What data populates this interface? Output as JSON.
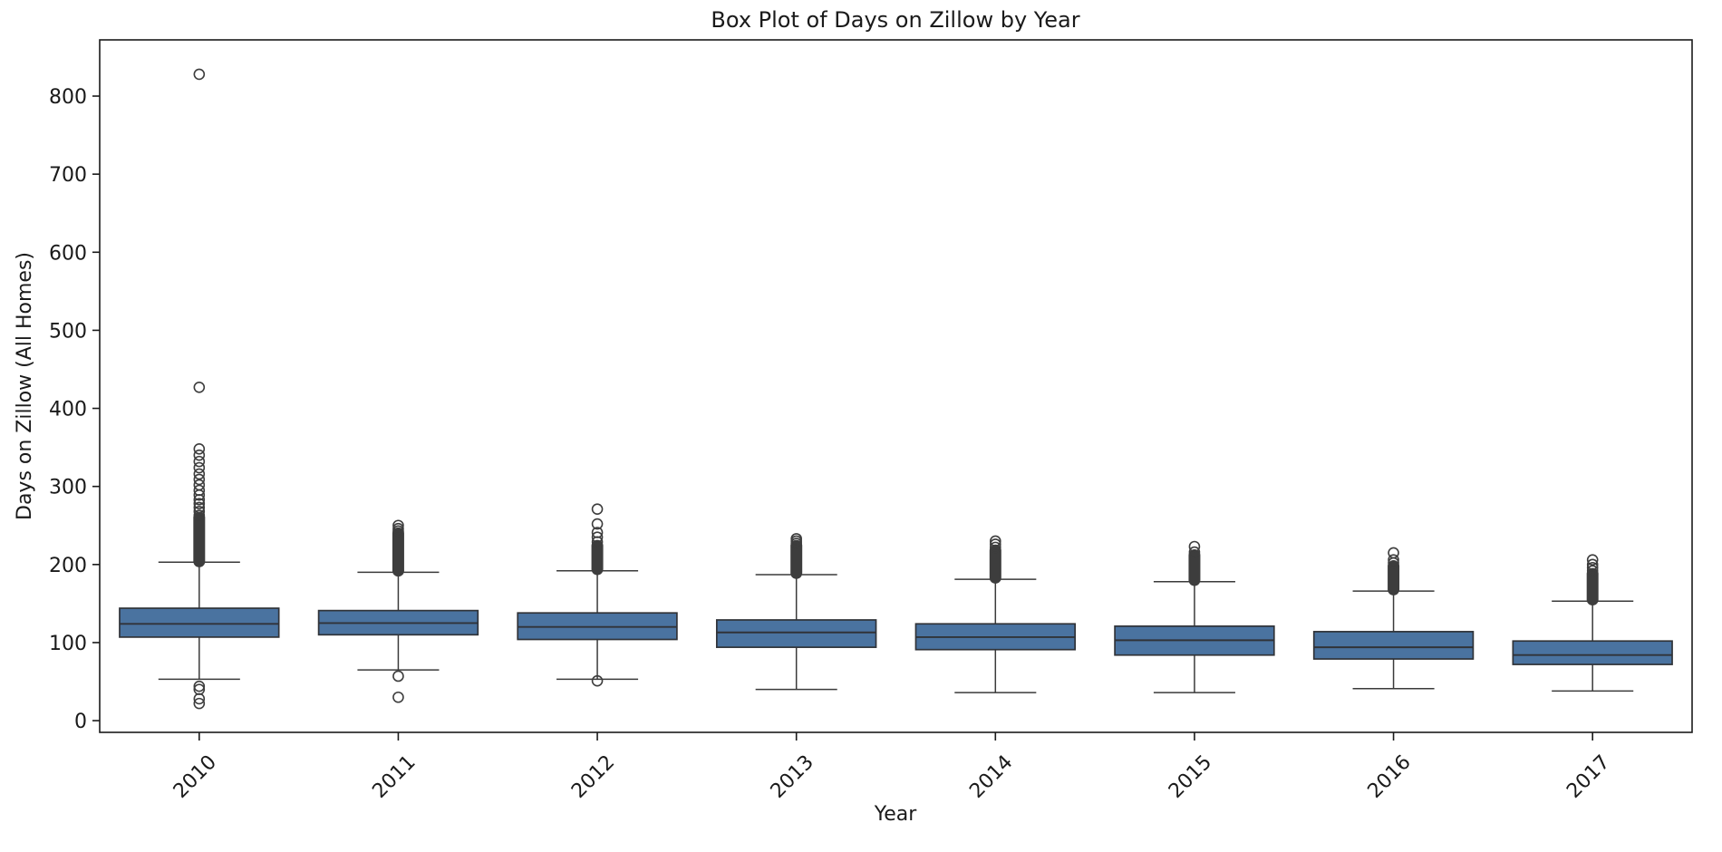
{
  "title": "Box Plot of Days on Zillow by Year",
  "chart_data": {
    "type": "box",
    "title": "Box Plot of Days on Zillow by Year",
    "xlabel": "Year",
    "ylabel": "Days on Zillow (All Homes)",
    "categories": [
      "2010",
      "2011",
      "2012",
      "2013",
      "2014",
      "2015",
      "2016",
      "2017"
    ],
    "yticks": [
      0,
      100,
      200,
      300,
      400,
      500,
      600,
      700,
      800
    ],
    "ylim": [
      -15,
      872
    ],
    "grid": false,
    "legend": "none",
    "colors": {
      "box_fill": "#4A73A0",
      "box_edge": "#303338",
      "whisker": "#3a3a3a",
      "flier": "#3d3d3d",
      "spine": "#1a1a1a",
      "text": "#1a1a1a",
      "background": "#ffffff"
    },
    "boxes": [
      {
        "category": "2010",
        "whisker_low": 53,
        "q1": 107,
        "median": 124,
        "q3": 144,
        "whisker_high": 203,
        "outliers_low": [
          44,
          40,
          28,
          22
        ],
        "outlier_band_high": [
          204,
          260
        ],
        "outliers_high": [
          263,
          268,
          273,
          278,
          283,
          289,
          295,
          302,
          309,
          316,
          324,
          332,
          340,
          348,
          427,
          828
        ]
      },
      {
        "category": "2011",
        "whisker_low": 65,
        "q1": 110,
        "median": 125,
        "q3": 141,
        "whisker_high": 190,
        "outliers_low": [
          57,
          30
        ],
        "outlier_band_high": [
          192,
          240
        ],
        "outliers_high": [
          243,
          246,
          250
        ]
      },
      {
        "category": "2012",
        "whisker_low": 53,
        "q1": 104,
        "median": 120,
        "q3": 138,
        "whisker_high": 192,
        "outliers_low": [
          51
        ],
        "outlier_band_high": [
          194,
          224
        ],
        "outliers_high": [
          229,
          235,
          241,
          252,
          271
        ]
      },
      {
        "category": "2013",
        "whisker_low": 40,
        "q1": 94,
        "median": 113,
        "q3": 129,
        "whisker_high": 187,
        "outliers_low": [],
        "outlier_band_high": [
          189,
          224
        ],
        "outliers_high": [
          227,
          230,
          233
        ]
      },
      {
        "category": "2014",
        "whisker_low": 36,
        "q1": 91,
        "median": 107,
        "q3": 124,
        "whisker_high": 181,
        "outliers_low": [],
        "outlier_band_high": [
          183,
          218
        ],
        "outliers_high": [
          222,
          226,
          230
        ]
      },
      {
        "category": "2015",
        "whisker_low": 36,
        "q1": 84,
        "median": 103,
        "q3": 121,
        "whisker_high": 178,
        "outliers_low": [],
        "outlier_band_high": [
          180,
          212
        ],
        "outliers_high": [
          216,
          223
        ]
      },
      {
        "category": "2016",
        "whisker_low": 41,
        "q1": 79,
        "median": 94,
        "q3": 114,
        "whisker_high": 166,
        "outliers_low": [],
        "outlier_band_high": [
          168,
          198
        ],
        "outliers_high": [
          202,
          206,
          215
        ]
      },
      {
        "category": "2017",
        "whisker_low": 38,
        "q1": 72,
        "median": 84,
        "q3": 102,
        "whisker_high": 153,
        "outliers_low": [],
        "outlier_band_high": [
          155,
          188
        ],
        "outliers_high": [
          192,
          196,
          200,
          206
        ]
      }
    ]
  }
}
